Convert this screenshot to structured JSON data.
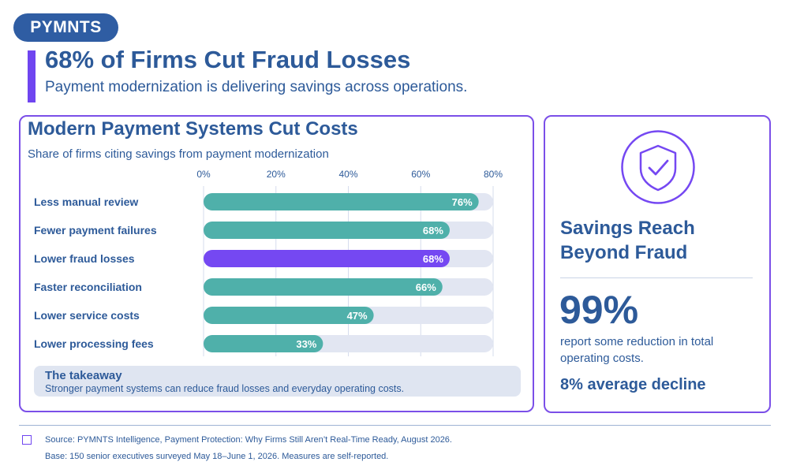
{
  "brand": {
    "logo_text": "PYMNTS"
  },
  "header": {
    "title": "68% of Firms Cut Fraud Losses",
    "subtitle": "Payment modernization is delivering savings across operations."
  },
  "colors": {
    "brand_blue": "#2f5da3",
    "text_blue": "#2d5a99",
    "accent_purple": "#6f45f0",
    "bar_teal": "#4fb0aa",
    "bar_track": "#e2e6f2",
    "highlight_purple": "#7548f2"
  },
  "chart_data": {
    "type": "bar",
    "orientation": "horizontal",
    "title": "Modern Payment Systems Cut Costs",
    "subtitle": "Share of firms citing savings from payment modernization",
    "categories": [
      "Less manual review",
      "Fewer payment failures",
      "Lower fraud losses",
      "Faster reconciliation",
      "Lower service costs",
      "Lower processing fees"
    ],
    "values": [
      76,
      68,
      68,
      66,
      47,
      33
    ],
    "value_labels": [
      "76%",
      "68%",
      "68%",
      "66%",
      "47%",
      "33%"
    ],
    "highlight_category": "Lower fraud losses",
    "xlim": [
      0,
      80
    ],
    "xticks": [
      0,
      20,
      40,
      60,
      80
    ],
    "xtick_labels": [
      "0%",
      "20%",
      "40%",
      "60%",
      "80%"
    ],
    "grid": true,
    "legend": "none"
  },
  "takeaway": {
    "title": "The takeaway",
    "text": "Stronger payment systems can reduce fraud losses and everyday operating costs."
  },
  "sidebar": {
    "icon": "shield-check-icon",
    "title": "Savings Reach Beyond Fraud",
    "stat": "99%",
    "stat_text": "report some reduction in total operating costs.",
    "decline": "8% average decline"
  },
  "footer": {
    "source": "Source: PYMNTS Intelligence, Payment Protection: Why Firms Still Aren’t Real-Time Ready, August 2026.",
    "base": "Base: 150 senior executives surveyed May 18–June 1, 2026. Measures are self-reported."
  }
}
